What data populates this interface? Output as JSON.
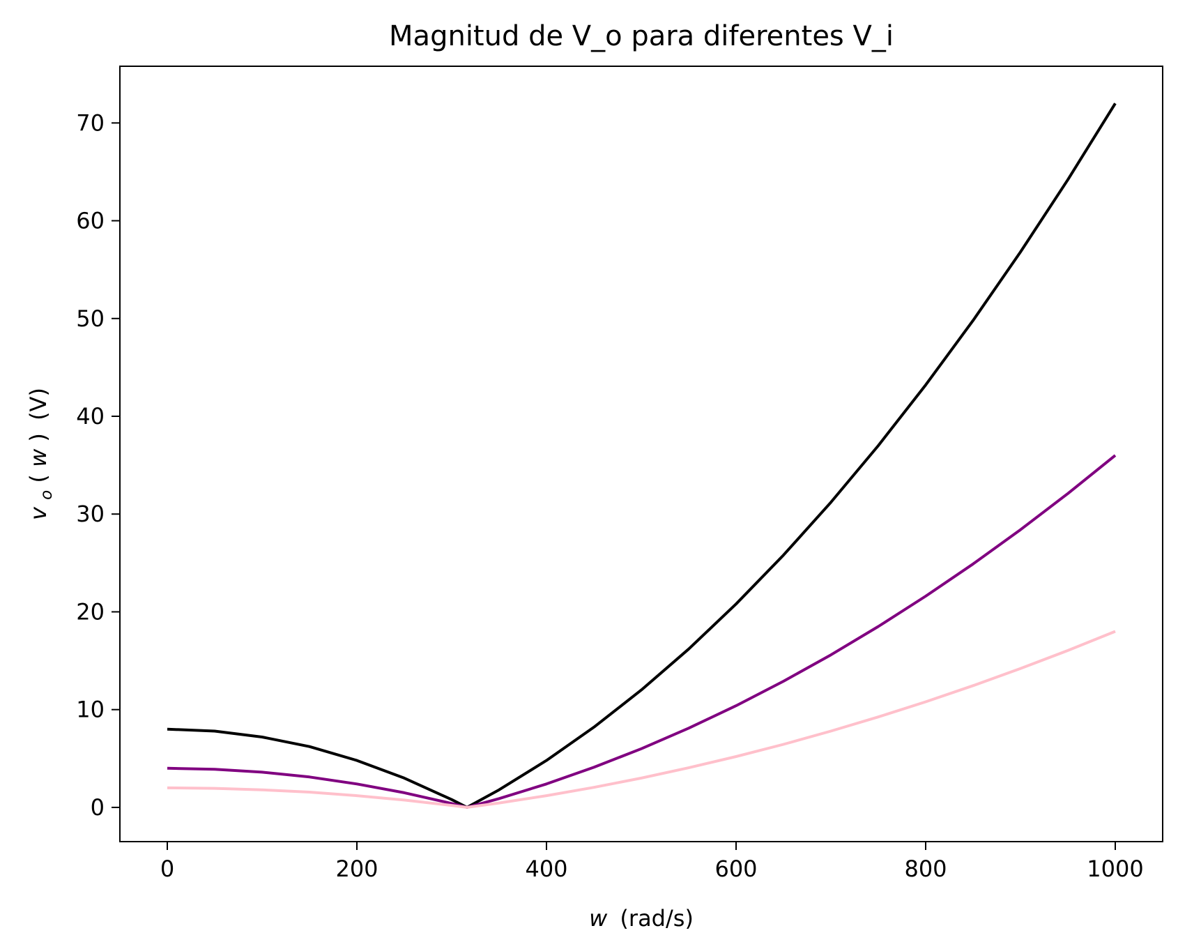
{
  "chart_data": {
    "type": "line",
    "title": "Magnitud de V_o para diferentes V_i",
    "xlabel": {
      "var": "w",
      "unit": "(rad/s)"
    },
    "ylabel": {
      "var": "v",
      "sub": "o",
      "open": "(",
      "arg": "w",
      "close": ")",
      "unit": "(V)"
    },
    "xlim": [
      -50,
      1050
    ],
    "ylim": [
      -3.5,
      75.8
    ],
    "xticks": [
      0,
      200,
      400,
      600,
      800,
      1000
    ],
    "yticks": [
      0,
      10,
      20,
      30,
      40,
      50,
      60,
      70
    ],
    "grid": false,
    "x": [
      0,
      50,
      100,
      150,
      200,
      250,
      300,
      316.2,
      350,
      400,
      450,
      500,
      550,
      600,
      650,
      700,
      750,
      800,
      850,
      900,
      950,
      1000
    ],
    "series": [
      {
        "color": "#000000",
        "values": [
          8.0,
          7.8,
          7.2,
          6.22,
          4.8,
          3.0,
          0.8,
          0.0,
          1.8,
          4.8,
          8.2,
          12.0,
          16.2,
          20.8,
          25.8,
          31.2,
          37.0,
          43.2,
          49.8,
          56.8,
          64.2,
          72.0
        ]
      },
      {
        "color": "#800080",
        "values": [
          4.0,
          3.9,
          3.6,
          3.11,
          2.4,
          1.5,
          0.4,
          0.0,
          0.9,
          2.4,
          4.1,
          6.0,
          8.1,
          10.4,
          12.9,
          15.6,
          18.5,
          21.6,
          24.9,
          28.4,
          32.1,
          36.0
        ]
      },
      {
        "color": "#FFC0CB",
        "values": [
          2.0,
          1.95,
          1.8,
          1.56,
          1.2,
          0.75,
          0.2,
          0.0,
          0.45,
          1.2,
          2.05,
          3.0,
          4.05,
          5.2,
          6.45,
          7.8,
          9.25,
          10.8,
          12.45,
          14.2,
          16.05,
          18.0
        ]
      }
    ]
  }
}
